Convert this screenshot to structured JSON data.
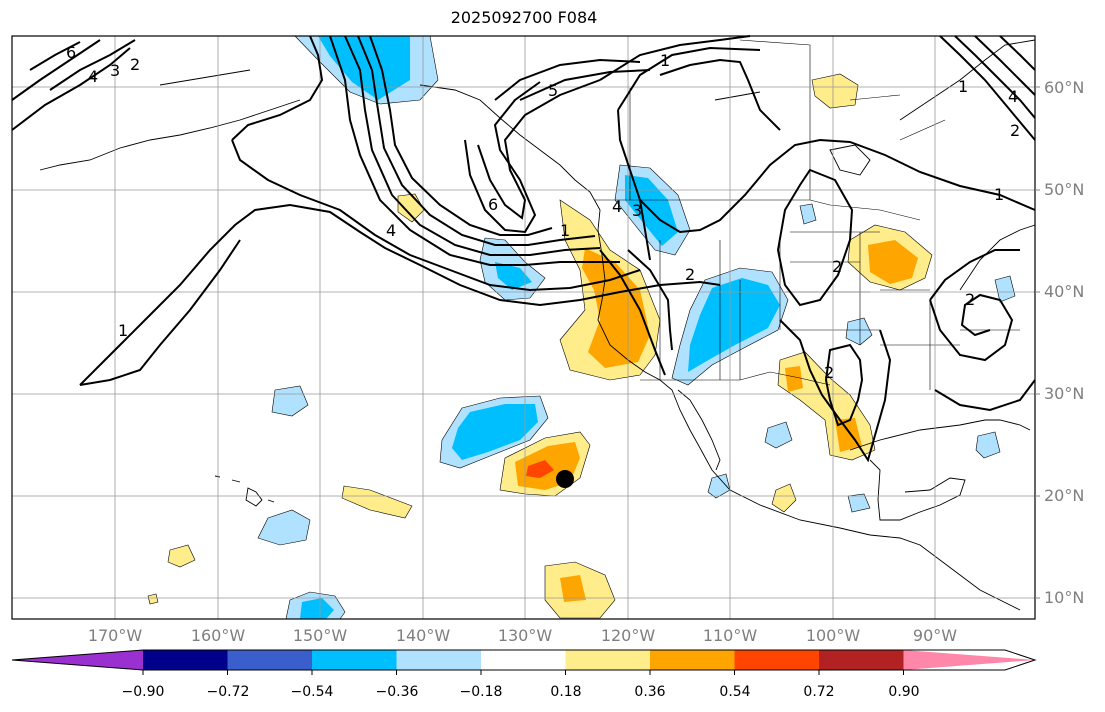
{
  "title": "2025092700 F084",
  "map": {
    "lat_labels": [
      "60°N",
      "50°N",
      "40°N",
      "30°N",
      "20°N",
      "10°N"
    ],
    "lon_labels": [
      "170°W",
      "160°W",
      "150°W",
      "140°W",
      "130°W",
      "120°W",
      "110°W",
      "100°W",
      "90°W"
    ],
    "contour_labels": [
      "6",
      "4",
      "3",
      "2",
      "1",
      "5",
      "6",
      "4",
      "1",
      "4",
      "3",
      "2",
      "2",
      "2",
      "1",
      "2",
      "1",
      "4",
      "2",
      "1"
    ],
    "marker": "black-dot"
  },
  "colorbar": {
    "tick_labels": [
      "−0.90",
      "−0.72",
      "−0.54",
      "−0.36",
      "−0.18",
      "0.18",
      "0.36",
      "0.54",
      "0.72",
      "0.90"
    ],
    "colors": [
      "#9b30d0",
      "#00008b",
      "#3a5fcd",
      "#00bfff",
      "#b0e2ff",
      "#ffffff",
      "#ffec8b",
      "#ffa500",
      "#ff4500",
      "#b22222",
      "#ff88aa"
    ]
  }
}
